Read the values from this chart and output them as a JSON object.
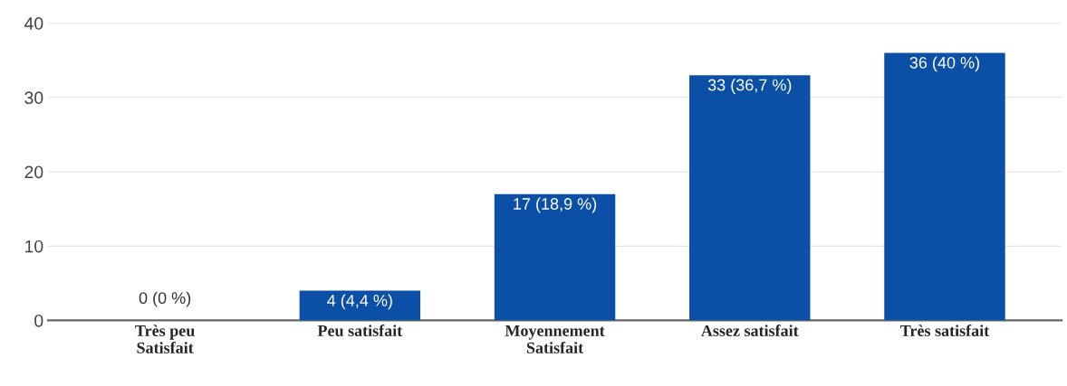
{
  "chart_data": {
    "type": "bar",
    "categories": [
      "Très peu\nSatisfait",
      "Peu satisfait",
      "Moyennement\nSatisfait",
      "Assez satisfait",
      "Très satisfait"
    ],
    "values": [
      0,
      4,
      17,
      33,
      36
    ],
    "value_labels": [
      "0 (0 %)",
      "4 (4,4 %)",
      "17 (18,9 %)",
      "33 (36,7 %)",
      "36 (40 %)"
    ],
    "color": "#0b50a6",
    "ylim": [
      0,
      40
    ],
    "yticks": [
      0,
      10,
      20,
      30,
      40
    ],
    "grid": "y",
    "legend": false
  }
}
